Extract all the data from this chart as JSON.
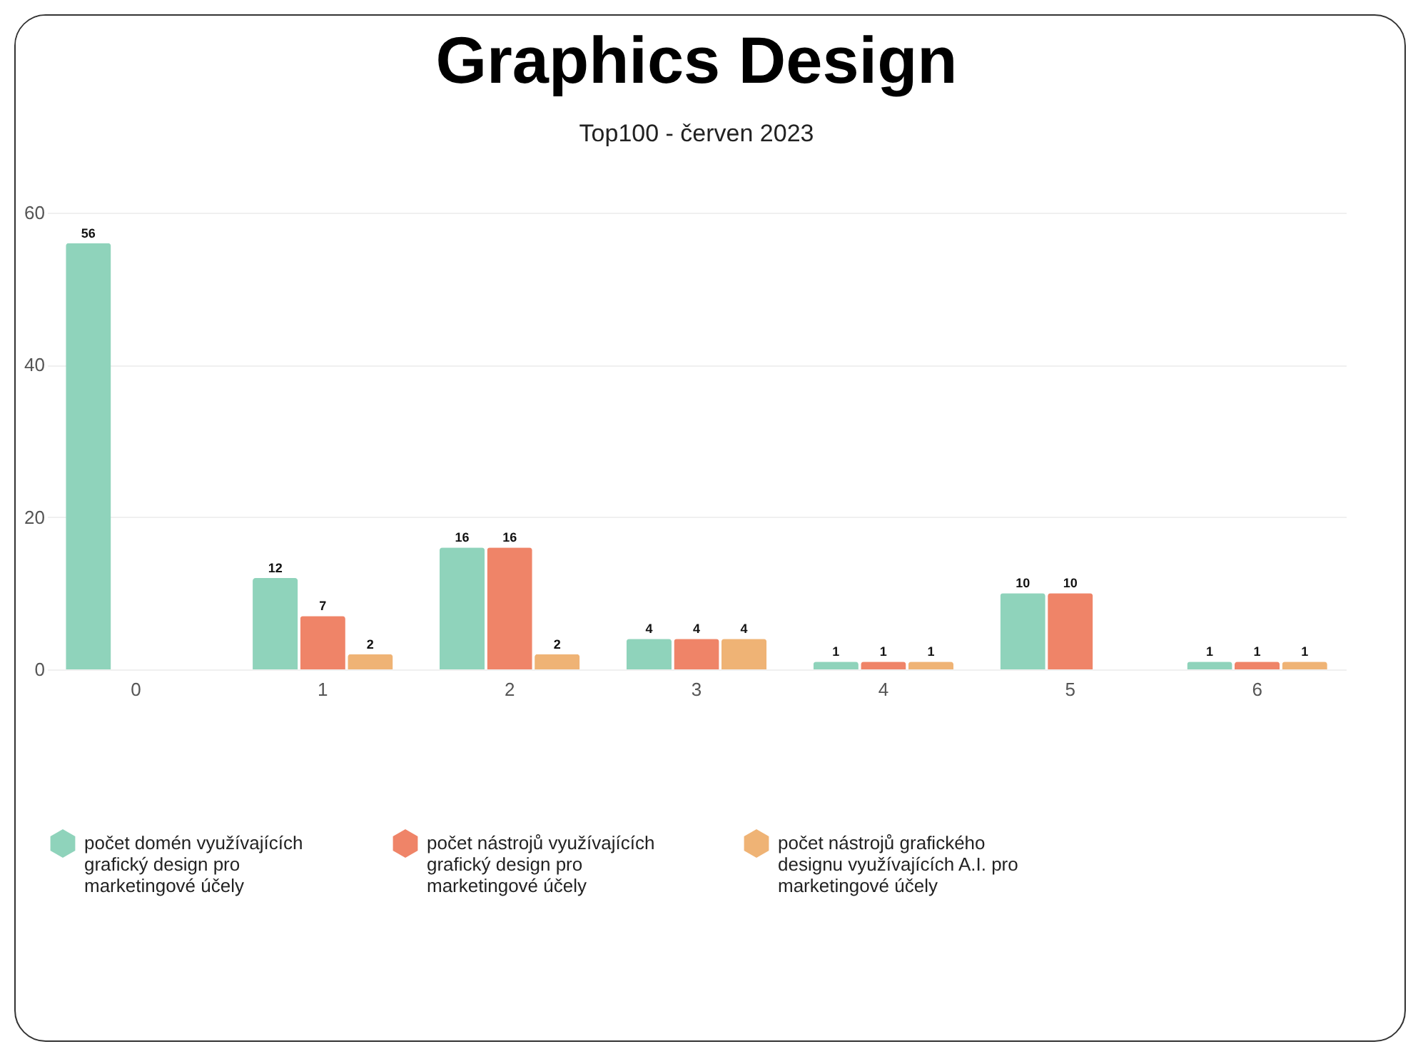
{
  "chart_data": {
    "type": "bar",
    "title": "Graphics Design",
    "subtitle": "Top100 - červen 2023",
    "categories": [
      "0",
      "1",
      "2",
      "3",
      "4",
      "5",
      "6"
    ],
    "series": [
      {
        "name": "počet domén využívajících grafický design pro marketingové účely",
        "color": "#8fd3bb",
        "values": [
          56,
          12,
          16,
          4,
          1,
          10,
          1
        ]
      },
      {
        "name": "počet nástrojů využívajících grafický design pro marketingové účely",
        "color": "#ef8468",
        "values": [
          null,
          7,
          16,
          4,
          1,
          10,
          1
        ]
      },
      {
        "name": "počet nástrojů grafického designu využívajících A.I. pro marketingové účely",
        "color": "#efb375",
        "values": [
          null,
          2,
          2,
          4,
          1,
          null,
          1
        ]
      }
    ],
    "ylim": [
      0,
      60
    ],
    "yticks": [
      0,
      20,
      40,
      60
    ],
    "grid": "y",
    "legend": "bottom",
    "data_labels": true
  }
}
